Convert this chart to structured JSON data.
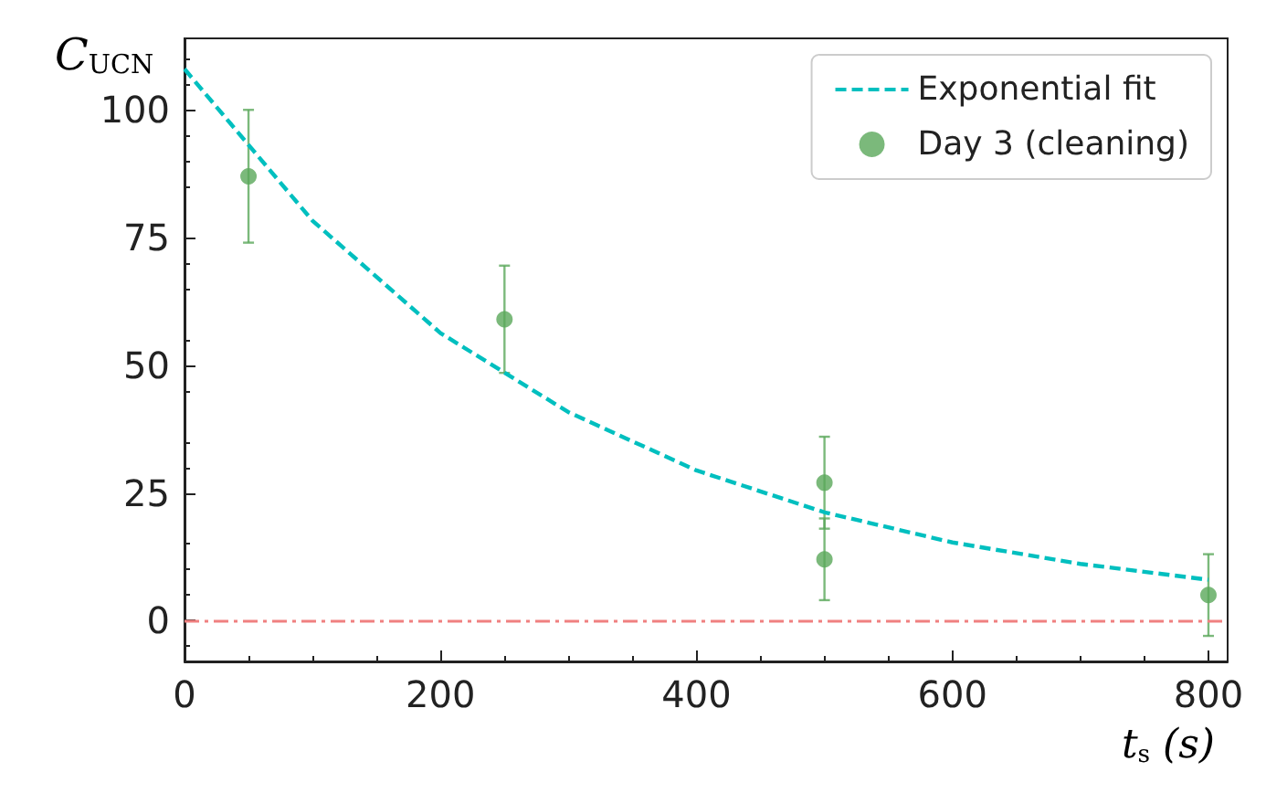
{
  "chart_data": {
    "type": "scatter",
    "xlabel": "t$_{s}$ (s)",
    "ylabel": "C$_{UCN}$",
    "xlim": [
      0,
      815
    ],
    "ylim": [
      -8,
      114
    ],
    "xticks": [
      0,
      200,
      400,
      600,
      800
    ],
    "yticks": [
      0,
      25,
      50,
      75,
      100
    ],
    "grid": false,
    "legend": "top right",
    "series": [
      {
        "name": "Exponential fit",
        "type": "line",
        "color": "#00bfbf",
        "line_style": "dashed",
        "marker": "none",
        "x": [
          0,
          100,
          200,
          300,
          400,
          500,
          600,
          700,
          800
        ],
        "values": [
          108,
          78.3,
          56.3,
          40.8,
          29.4,
          21.2,
          15.3,
          11.1,
          8
        ]
      },
      {
        "name": "Day 3 (cleaning)",
        "color": "#5aa75a",
        "marker": "circle",
        "x": [
          50,
          250,
          500,
          500,
          800
        ],
        "values": [
          87,
          59,
          27,
          12,
          5
        ],
        "errors": [
          13,
          10.5,
          9,
          8,
          8
        ]
      }
    ],
    "ref_lines": [
      {
        "axis": "y",
        "value": 0,
        "color": "#f08080",
        "line_style": "dashdot"
      }
    ]
  }
}
